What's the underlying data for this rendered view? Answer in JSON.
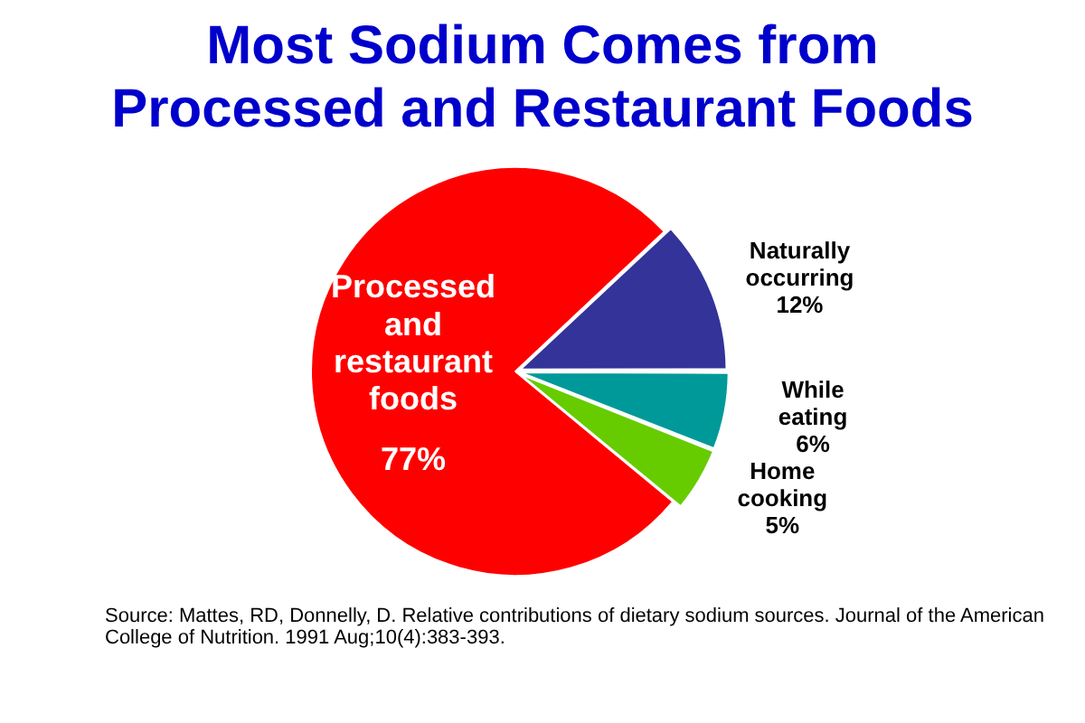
{
  "chart_data": {
    "type": "pie",
    "title": "Most Sodium Comes from Processed and Restaurant Foods",
    "categories": [
      "Naturally occurring",
      "While eating",
      "Home cooking",
      "Processed and restaurant foods"
    ],
    "values": [
      12,
      6,
      5,
      77
    ],
    "colors": [
      "#333399",
      "#009999",
      "#66cc00",
      "#ff0000"
    ],
    "value_labels": [
      "12%",
      "6%",
      "5%",
      "77%"
    ],
    "legend": false,
    "annotations": [
      "Source: Mattes, RD, Donnelly, D. Relative contributions of dietary sodium sources. Journal of the American College of Nutrition. 1991 Aug;10(4):383-393."
    ]
  }
}
